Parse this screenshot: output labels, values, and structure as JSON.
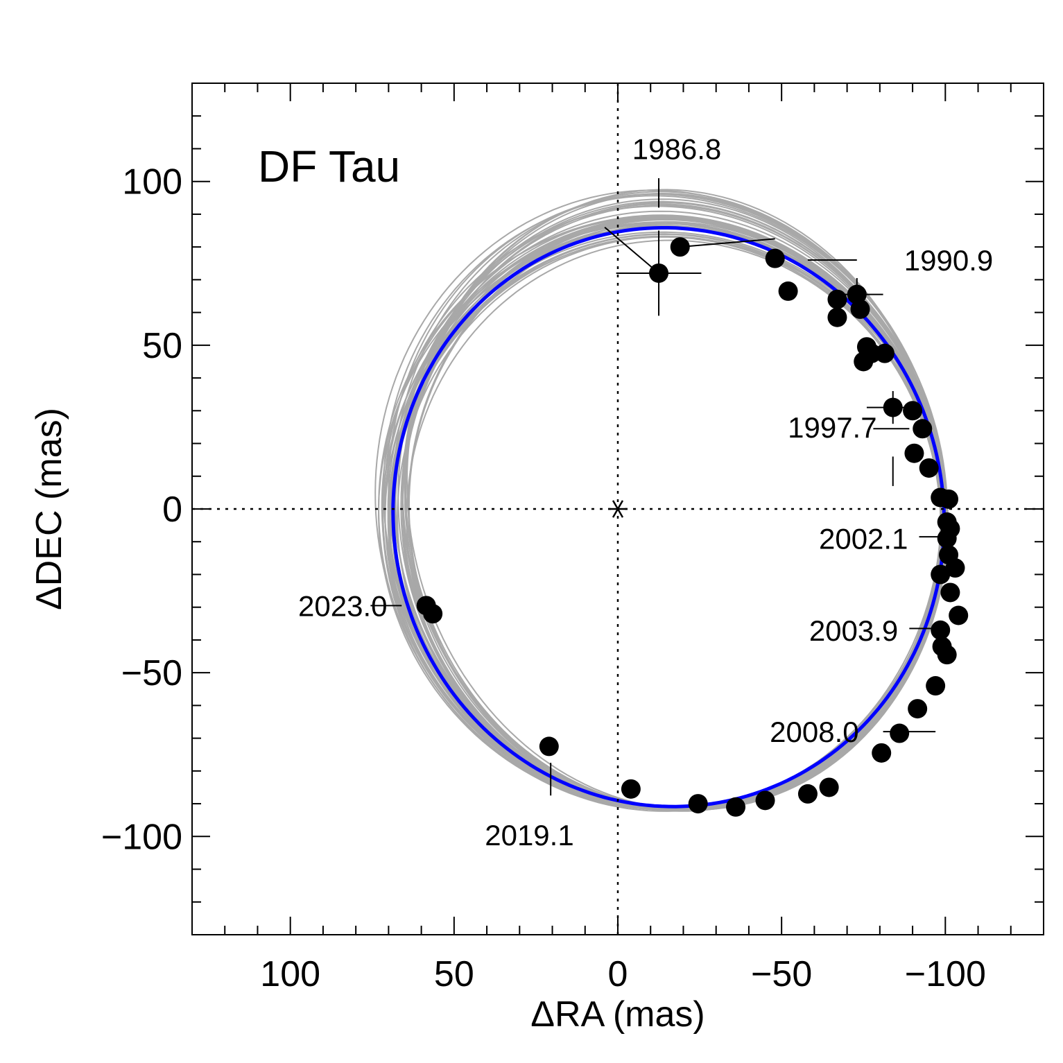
{
  "chart_data": {
    "type": "scatter",
    "title": "DF Tau",
    "xlabel": "ΔRA (mas)",
    "ylabel": "ΔDEC (mas)",
    "xlim": [
      130,
      -130
    ],
    "ylim": [
      -130,
      130
    ],
    "x_ticks": [
      100,
      50,
      0,
      -50,
      -100
    ],
    "x_tick_labels": [
      "100",
      "50",
      "0",
      "−50",
      "−100"
    ],
    "y_ticks": [
      100,
      50,
      0,
      -50,
      -100
    ],
    "y_tick_labels": [
      "100",
      "50",
      "0",
      "−50",
      "−100"
    ],
    "grid": false,
    "primary_star": {
      "x": 0,
      "y": 0
    },
    "best_fit_orbit": {
      "color": "#0000ff",
      "center": [
        -15.5,
        -2.5
      ],
      "semi_axis_x": 84,
      "semi_axis_y": 88.5,
      "rotation_deg": -10,
      "comment": "ellipse parameters in data units (mas)"
    },
    "sample_orbits_color": "#a8a8a8",
    "sample_orbits_count": 40,
    "points": [
      {
        "x": -12.5,
        "y": 72,
        "xerr": 13,
        "yerr": 13
      },
      {
        "x": -19,
        "y": 80
      },
      {
        "x": -48,
        "y": 76.5
      },
      {
        "x": -52,
        "y": 66.5
      },
      {
        "x": -67,
        "y": 64
      },
      {
        "x": -73,
        "y": 65.5,
        "xerr": 8,
        "yerr": 5
      },
      {
        "x": -74,
        "y": 61
      },
      {
        "x": -67,
        "y": 58.5
      },
      {
        "x": -76,
        "y": 49.5
      },
      {
        "x": -75,
        "y": 45
      },
      {
        "x": -77.5,
        "y": 47.5
      },
      {
        "x": -81.5,
        "y": 47.5
      },
      {
        "x": -84,
        "y": 31,
        "xerr": 8,
        "yerr": 5
      },
      {
        "x": -90,
        "y": 30
      },
      {
        "x": -93,
        "y": 24.5
      },
      {
        "x": -90.5,
        "y": 17
      },
      {
        "x": -95,
        "y": 12.5
      },
      {
        "x": -98.5,
        "y": 3.5
      },
      {
        "x": -101,
        "y": 3
      },
      {
        "x": -100.5,
        "y": -4
      },
      {
        "x": -101.5,
        "y": -6
      },
      {
        "x": -100.5,
        "y": -9
      },
      {
        "x": -101,
        "y": -14
      },
      {
        "x": -103,
        "y": -18
      },
      {
        "x": -98.5,
        "y": -20
      },
      {
        "x": -101.5,
        "y": -25.5
      },
      {
        "x": -104,
        "y": -32.5
      },
      {
        "x": -98.5,
        "y": -37
      },
      {
        "x": -99,
        "y": -42
      },
      {
        "x": -100.5,
        "y": -44.5
      },
      {
        "x": -97,
        "y": -54
      },
      {
        "x": -91.5,
        "y": -61
      },
      {
        "x": -86,
        "y": -68.5
      },
      {
        "x": -80.5,
        "y": -74.5
      },
      {
        "x": -64.5,
        "y": -85
      },
      {
        "x": -58,
        "y": -87
      },
      {
        "x": -45,
        "y": -89
      },
      {
        "x": -36,
        "y": -91
      },
      {
        "x": -24.5,
        "y": -90
      },
      {
        "x": -4,
        "y": -85.5
      },
      {
        "x": 21,
        "y": -72.5
      },
      {
        "x": 58.5,
        "y": -29.5
      },
      {
        "x": 56.5,
        "y": -32
      }
    ],
    "annotations": [
      {
        "text": "1986.8",
        "x": -18,
        "y": 110
      },
      {
        "text": "1990.9",
        "x": -101,
        "y": 76
      },
      {
        "text": "1997.7",
        "x": -65.5,
        "y": 25
      },
      {
        "text": "2002.1",
        "x": -75,
        "y": -9
      },
      {
        "text": "2003.9",
        "x": -72,
        "y": -37
      },
      {
        "text": "2008.0",
        "x": -60,
        "y": -68
      },
      {
        "text": "2019.1",
        "x": 27,
        "y": -99.5
      },
      {
        "text": "2023.0",
        "x": 84,
        "y": -29.5
      }
    ],
    "annotation_leaders": [
      {
        "from": [
          -84,
          7
        ],
        "to": [
          -84,
          16
        ]
      },
      {
        "from": [
          -102,
          -8.5
        ],
        "to": [
          -92,
          -8.5
        ]
      },
      {
        "from": [
          -99,
          -36.5
        ],
        "to": [
          -89,
          -36.5
        ]
      },
      {
        "from": [
          -97,
          -68
        ],
        "to": [
          -81,
          -68
        ]
      },
      {
        "from": [
          20.5,
          -77.5
        ],
        "to": [
          20.5,
          -87.5
        ]
      },
      {
        "from": [
          75.5,
          -29.5
        ],
        "to": [
          66,
          -29.5
        ]
      },
      {
        "from": [
          -58,
          76
        ],
        "to": [
          -73,
          76
        ]
      },
      {
        "from": [
          -78,
          24.5
        ],
        "to": [
          -89,
          24.5
        ]
      },
      {
        "from": [
          -12.5,
          92
        ],
        "to": [
          -12.5,
          101
        ]
      }
    ]
  }
}
